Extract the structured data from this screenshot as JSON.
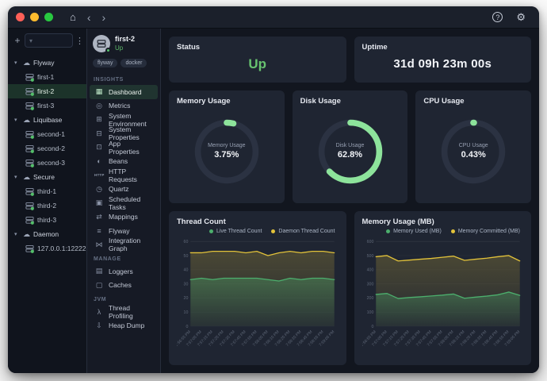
{
  "colors": {
    "accent_green": "#54c06a",
    "status_green": "#67c26f",
    "gauge_green": "#8de39b",
    "gauge_track": "#2b3242",
    "line_green": "#4caf6d",
    "line_yellow": "#e2c23a",
    "card_bg": "#1f2532"
  },
  "icons": {
    "home": "⌂",
    "back": "‹",
    "forward": "›",
    "help": "?",
    "gear": "⚙",
    "plus": "+",
    "filter": "▾",
    "kebab": "⋮",
    "chevron_down": "▾",
    "cloud": "☁",
    "nav": {
      "dashboard": "▦",
      "metrics": "◎",
      "system-environment": "⊞",
      "system-properties": "⊟",
      "app-properties": "⊡",
      "beans": "◐",
      "http-requests": "HTTP",
      "quartz": "◷",
      "scheduled-tasks": "▣",
      "mappings": "⇄",
      "flyway": "≡",
      "integration-graph": "⋈",
      "loggers": "▤",
      "caches": "▢",
      "thread-profiling": "λ",
      "heap-dump": "⇩"
    }
  },
  "sidebar": {
    "groups": [
      {
        "label": "Flyway",
        "items": [
          {
            "label": "first-1",
            "selected": false
          },
          {
            "label": "first-2",
            "selected": true
          },
          {
            "label": "first-3",
            "selected": false
          }
        ]
      },
      {
        "label": "Liquibase",
        "items": [
          {
            "label": "second-1",
            "selected": false
          },
          {
            "label": "second-2",
            "selected": false
          },
          {
            "label": "second-3",
            "selected": false
          }
        ]
      },
      {
        "label": "Secure",
        "items": [
          {
            "label": "third-1",
            "selected": false
          },
          {
            "label": "third-2",
            "selected": false
          },
          {
            "label": "third-3",
            "selected": false
          }
        ]
      },
      {
        "label": "Daemon",
        "items": [
          {
            "label": "127.0.0.1:12222",
            "selected": false
          }
        ]
      }
    ]
  },
  "nav": {
    "app": {
      "name": "first-2",
      "status": "Up"
    },
    "tags": [
      "flyway",
      "docker"
    ],
    "sections": [
      {
        "label": "INSIGHTS",
        "items": [
          {
            "label": "Dashboard",
            "icon": "dashboard",
            "selected": true
          },
          {
            "label": "Metrics",
            "icon": "metrics",
            "selected": false
          },
          {
            "label": "System Environment",
            "icon": "system-environment",
            "selected": false
          },
          {
            "label": "System Properties",
            "icon": "system-properties",
            "selected": false
          },
          {
            "label": "App Properties",
            "icon": "app-properties",
            "selected": false
          },
          {
            "label": "Beans",
            "icon": "beans",
            "selected": false
          },
          {
            "label": "HTTP Requests",
            "icon": "http-requests",
            "selected": false
          },
          {
            "label": "Quartz",
            "icon": "quartz",
            "selected": false
          },
          {
            "label": "Scheduled Tasks",
            "icon": "scheduled-tasks",
            "selected": false
          },
          {
            "label": "Mappings",
            "icon": "mappings",
            "selected": false
          },
          {
            "label": "Flyway",
            "icon": "flyway",
            "selected": false
          },
          {
            "label": "Integration Graph",
            "icon": "integration-graph",
            "selected": false
          }
        ]
      },
      {
        "label": "MANAGE",
        "items": [
          {
            "label": "Loggers",
            "icon": "loggers",
            "selected": false
          },
          {
            "label": "Caches",
            "icon": "caches",
            "selected": false
          }
        ]
      },
      {
        "label": "JVM",
        "items": [
          {
            "label": "Thread Profiling",
            "icon": "thread-profiling",
            "selected": false
          },
          {
            "label": "Heap Dump",
            "icon": "heap-dump",
            "selected": false
          }
        ]
      }
    ]
  },
  "main": {
    "status_card": {
      "title": "Status",
      "value": "Up"
    },
    "uptime_card": {
      "title": "Uptime",
      "value": "31d 09h 23m 00s"
    },
    "gauges": [
      {
        "title": "Memory Usage",
        "label": "Memory Usage",
        "value": "3.75%",
        "pct": 3.75
      },
      {
        "title": "Disk Usage",
        "label": "Disk Usage",
        "value": "62.8%",
        "pct": 62.8
      },
      {
        "title": "CPU Usage",
        "label": "CPU Usage",
        "value": "0.43%",
        "pct": 0.43
      }
    ]
  },
  "chart_data": [
    {
      "type": "area",
      "title": "Thread Count",
      "x": [
        "7:56:55 PM",
        "7:57:05 PM",
        "7:57:15 PM",
        "7:57:25 PM",
        "7:57:35 PM",
        "7:57:45 PM",
        "7:57:55 PM",
        "7:58:05 PM",
        "7:58:15 PM",
        "7:58:25 PM",
        "7:58:35 PM",
        "7:58:45 PM",
        "7:58:55 PM",
        "7:59:05 PM"
      ],
      "series": [
        {
          "name": "Live Thread Count",
          "color": "#4caf6d",
          "values": [
            33,
            34,
            33,
            34,
            34,
            34,
            34,
            33,
            32,
            34,
            33,
            34,
            34,
            33
          ]
        },
        {
          "name": "Daemon Thread Count",
          "color": "#e2c23a",
          "values": [
            52,
            52,
            53,
            53,
            53,
            52,
            53,
            50,
            52,
            53,
            52,
            53,
            53,
            52
          ]
        }
      ],
      "ylim": [
        0,
        60
      ],
      "yticks": [
        0,
        10,
        20,
        30,
        40,
        50,
        60
      ],
      "legend_position": "top-right",
      "grid": true
    },
    {
      "type": "area",
      "title": "Memory Usage (MB)",
      "x": [
        "7:56:55 PM",
        "7:57:05 PM",
        "7:57:15 PM",
        "7:57:25 PM",
        "7:57:35 PM",
        "7:57:45 PM",
        "7:57:55 PM",
        "7:58:05 PM",
        "7:58:15 PM",
        "7:58:25 PM",
        "7:58:35 PM",
        "7:58:45 PM",
        "7:58:55 PM",
        "7:59:05 PM"
      ],
      "series": [
        {
          "name": "Memory Used (MB)",
          "color": "#4caf6d",
          "values": [
            225,
            232,
            196,
            203,
            208,
            214,
            220,
            228,
            198,
            206,
            213,
            222,
            242,
            218
          ]
        },
        {
          "name": "Memory Committed (MB)",
          "color": "#e2c23a",
          "values": [
            492,
            500,
            462,
            468,
            474,
            480,
            488,
            496,
            466,
            474,
            482,
            492,
            500,
            462
          ]
        }
      ],
      "ylim": [
        0,
        600
      ],
      "yticks": [
        0,
        100,
        200,
        300,
        400,
        500,
        600
      ],
      "legend_position": "top-right",
      "grid": true
    }
  ]
}
